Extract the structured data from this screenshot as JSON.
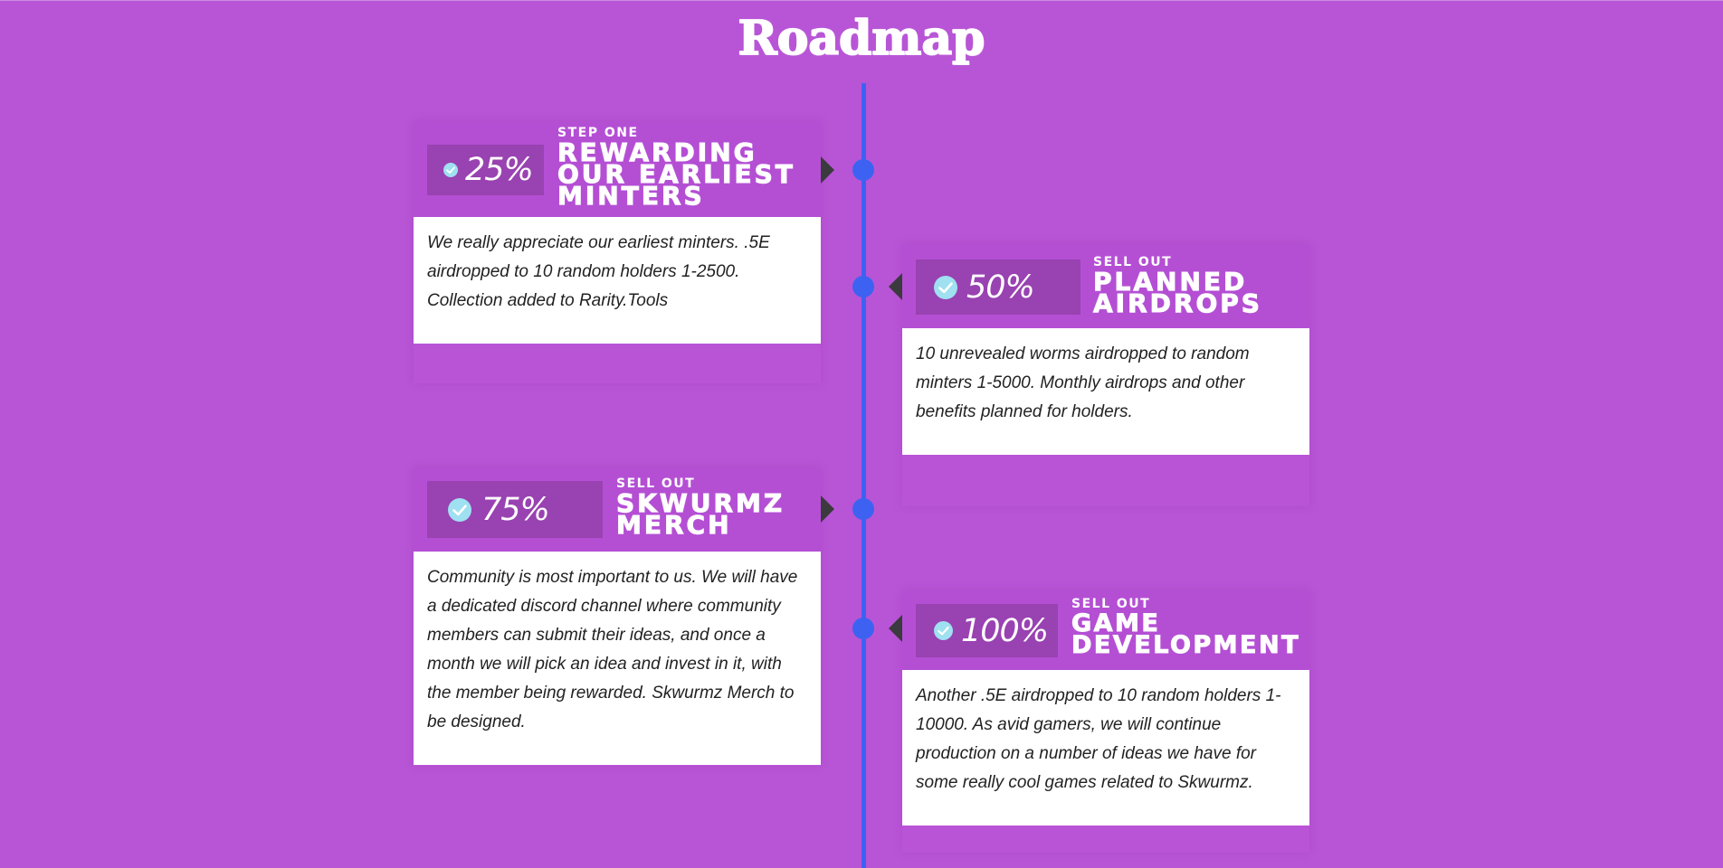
{
  "page": {
    "title": "Roadmap"
  },
  "colors": {
    "background": "#b855d6",
    "timeline": "#3d62f2",
    "percent_box": "#9942b1",
    "check": "#9fe0f1",
    "pointer": "#3b3a3e"
  },
  "milestones": [
    {
      "percent": "25%",
      "step": "STEP ONE",
      "title_lines": [
        "REWARDING",
        "OUR EARLIEST",
        "MINTERS"
      ],
      "description": "We really appreciate our earliest minters. .5E airdropped to 10 random holders 1-2500. Collection added to Rarity.Tools",
      "check_icon": "check-circle-icon"
    },
    {
      "percent": "50%",
      "step": "SELL OUT",
      "title_lines": [
        "PLANNED",
        "AIRDROPS"
      ],
      "description": "10 unrevealed worms airdropped to random minters 1-5000. Monthly airdrops and other benefits planned for holders.",
      "check_icon": "check-circle-icon"
    },
    {
      "percent": "75%",
      "step": "SELL OUT",
      "title_lines": [
        "SKWURMZ",
        "MERCH"
      ],
      "description": "Community is most important to us. We will have a dedicated discord channel where community members can submit their ideas, and once a month we will pick an idea and invest in it, with the member being rewarded. Skwurmz Merch to be designed.",
      "check_icon": "check-circle-icon"
    },
    {
      "percent": "100%",
      "step": "SELL OUT",
      "title_lines": [
        "GAME",
        "DEVELOPMENT"
      ],
      "description": "Another .5E airdropped to 10 random holders 1-10000. As avid gamers, we will continue production on a number of ideas we have for some really cool games related to Skwurmz.",
      "check_icon": "check-circle-icon"
    }
  ]
}
